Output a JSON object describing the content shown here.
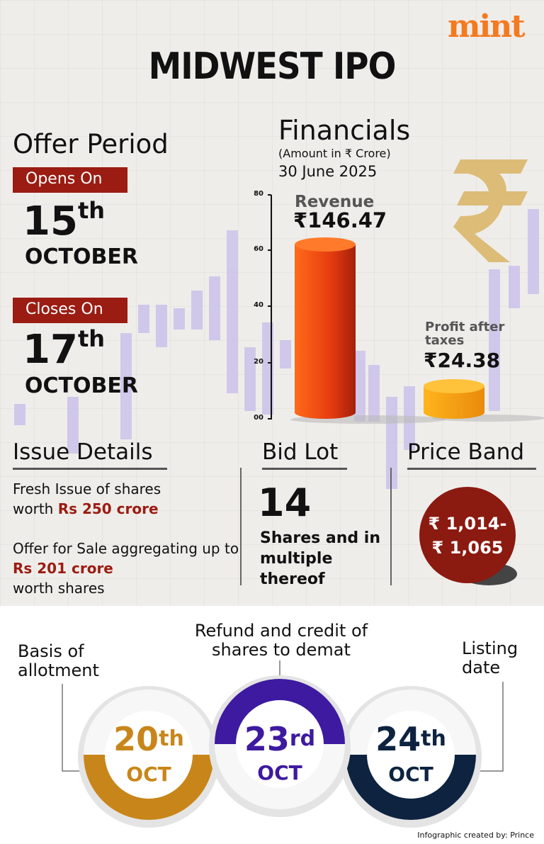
{
  "brand": "mint",
  "title": "MIDWEST IPO",
  "offer_period": {
    "title": "Offer Period",
    "opens": {
      "label": "Opens On",
      "day": "15",
      "suffix": "th",
      "month": "OCTOBER"
    },
    "closes": {
      "label": "Closes On",
      "day": "17",
      "suffix": "th",
      "month": "OCTOBER"
    }
  },
  "financials": {
    "title": "Financials",
    "note": "(Amount in ₹ Crore)",
    "date": "30 June 2025",
    "axis_ticks": [
      "80",
      "60",
      "40",
      "20",
      "00"
    ],
    "revenue": {
      "label": "Revenue",
      "value": "₹146.47"
    },
    "profit": {
      "label": "Profit after taxes",
      "value": "₹24.38"
    }
  },
  "issue_details": {
    "title": "Issue Details",
    "items": [
      [
        "Fresh Issue of shares worth",
        "Rs 250 crore"
      ],
      [
        "Offer for Sale aggregating up to",
        "Rs 201 crore",
        "worth shares"
      ]
    ]
  },
  "bid_lot": {
    "title": "Bid Lot",
    "number": "14",
    "text": "Shares and in multiple thereof"
  },
  "price_band": {
    "title": "Price Band",
    "lines": [
      "₹ 1,014-",
      "₹ 1,065"
    ]
  },
  "timeline": [
    {
      "label": "Basis of allotment",
      "day": "20",
      "suffix": "th",
      "month": "OCT"
    },
    {
      "label": "Refund and credit of shares to demat",
      "day": "23",
      "suffix": "rd",
      "month": "OCT"
    },
    {
      "label": "Listing date",
      "day": "24",
      "suffix": "th",
      "month": "OCT"
    }
  ],
  "credit": "Infographic created by: Prince"
}
